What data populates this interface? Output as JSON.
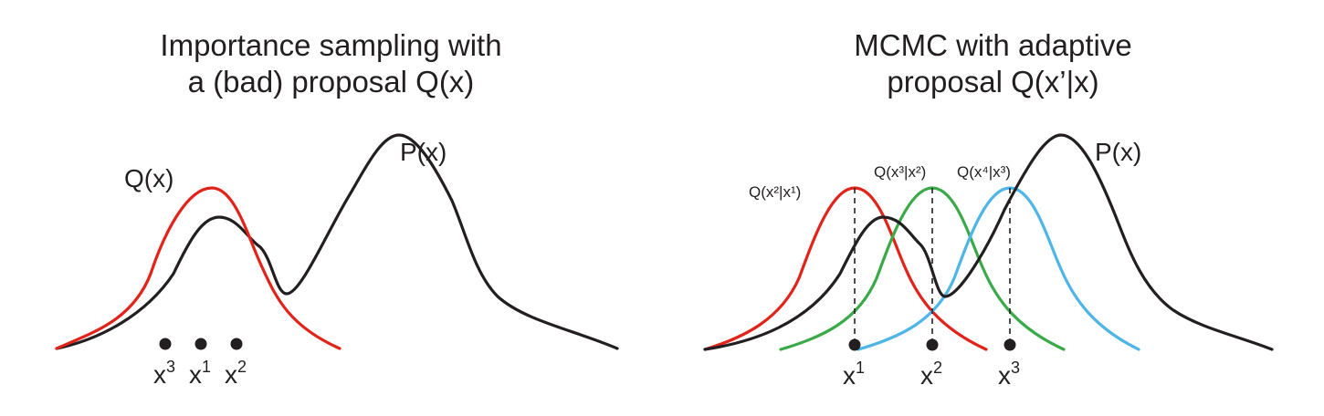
{
  "left": {
    "title_line1": "Importance sampling with",
    "title_line2": "a (bad) proposal Q(x)",
    "label_p": "P(x)",
    "label_q": "Q(x)",
    "samples": [
      {
        "base": "x",
        "sup": "3"
      },
      {
        "base": "x",
        "sup": "1"
      },
      {
        "base": "x",
        "sup": "2"
      }
    ]
  },
  "right": {
    "title_line1": "MCMC with adaptive",
    "title_line2": "proposal Q(x’|x)",
    "label_p": "P(x)",
    "proposal_labels": [
      "Q(x²|x¹)",
      "Q(x³|x²)",
      "Q(x⁴|x³)"
    ],
    "samples": [
      {
        "base": "x",
        "sup": "1"
      },
      {
        "base": "x",
        "sup": "2"
      },
      {
        "base": "x",
        "sup": "3"
      }
    ]
  },
  "colors": {
    "p_curve": "#231f20",
    "q_red": "#e2231a",
    "q_green": "#3aaa48",
    "q_blue": "#4db5e8",
    "text": "#231f20"
  }
}
